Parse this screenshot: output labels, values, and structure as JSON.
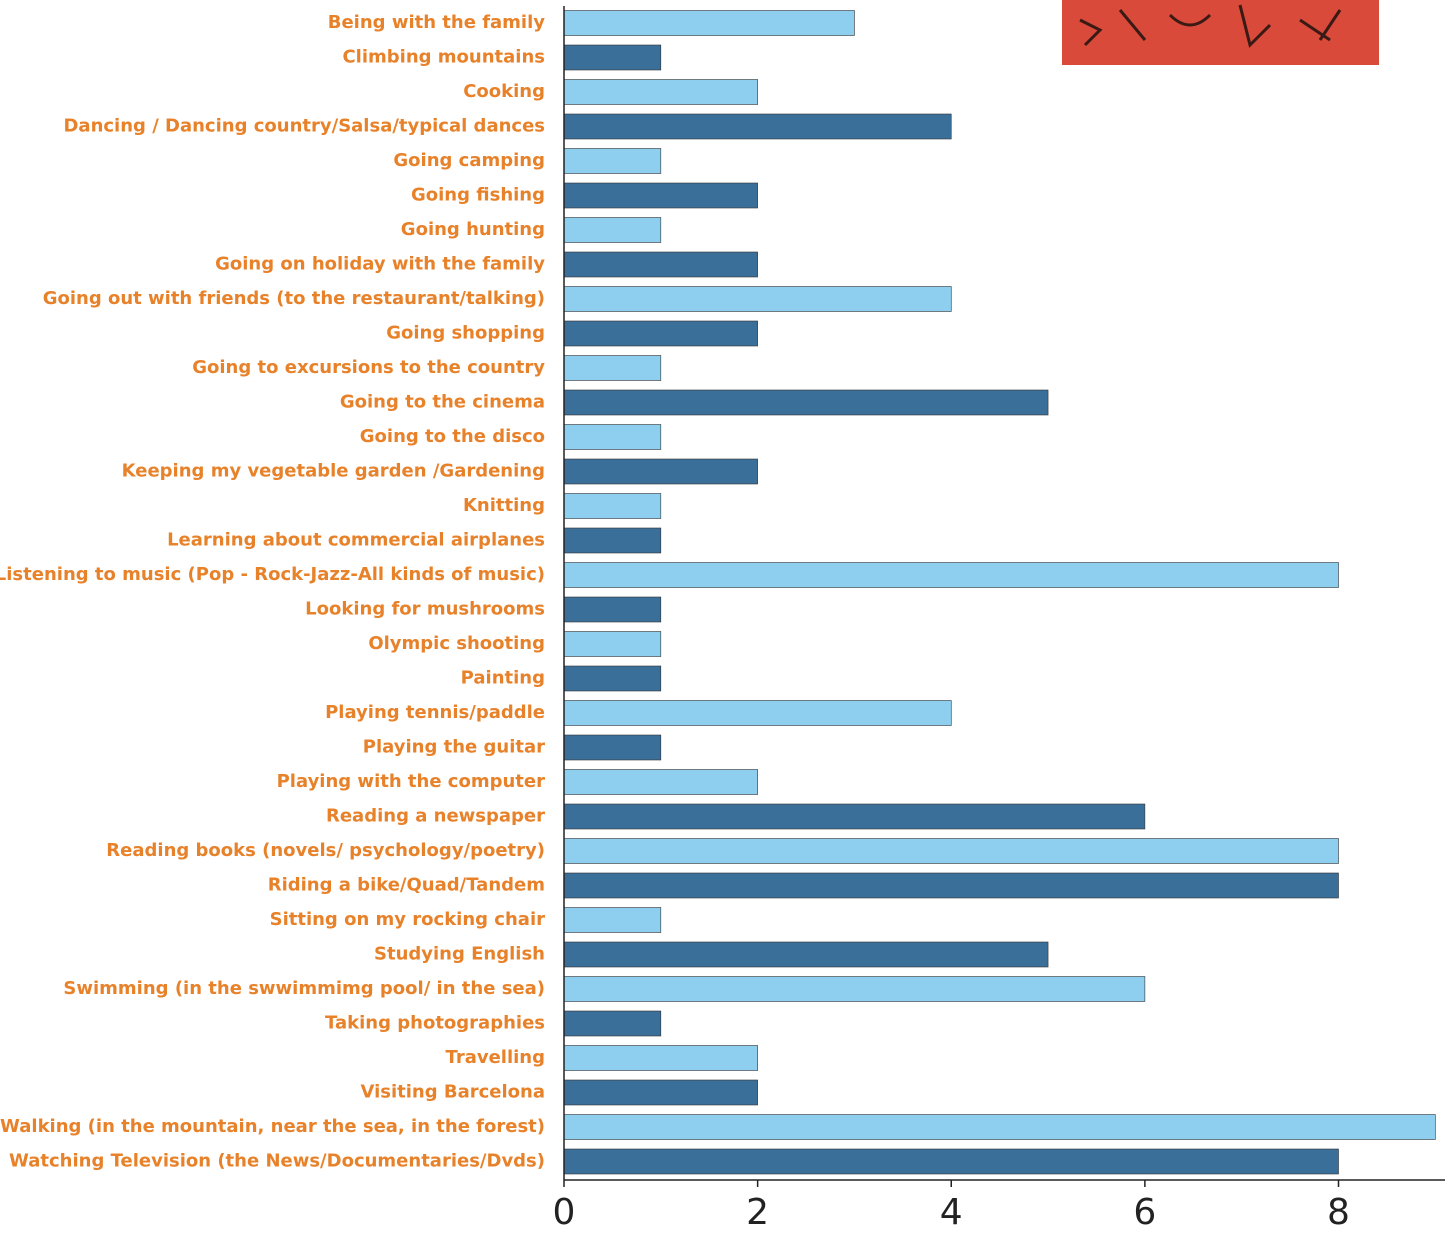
{
  "chart_data": {
    "type": "barh",
    "categories": [
      "Being with the family",
      "Climbing mountains",
      "Cooking",
      "Dancing / Dancing country/Salsa/typical dances",
      "Going camping",
      "Going fishing",
      "Going hunting",
      "Going on holiday with the family",
      "Going out with friends (to the restaurant/talking)",
      "Going shopping",
      "Going to excursions to the country",
      "Going to the cinema",
      "Going to the disco",
      "Keeping my vegetable garden /Gardening",
      "Knitting",
      "Learning about commercial airplanes",
      "Listening to music (Pop - Rock-Jazz-All kinds of music)",
      "Looking for mushrooms",
      "Olympic shooting",
      "Painting",
      "Playing tennis/paddle",
      "Playing the guitar",
      "Playing with the computer",
      "Reading a newspaper",
      "Reading books (novels/ psychology/poetry)",
      "Riding a bike/Quad/Tandem",
      "Sitting on my rocking chair",
      "Studying English",
      "Swimming (in the swwimmimg pool/ in the sea)",
      "Taking photographies",
      "Travelling",
      "Visiting Barcelona",
      "Walking (in the mountain, near the sea, in the forest)",
      "Watching Television (the News/Documentaries/Dvds)"
    ],
    "values": [
      3,
      1,
      2,
      4,
      1,
      2,
      1,
      2,
      4,
      2,
      1,
      5,
      1,
      2,
      1,
      1,
      8,
      1,
      1,
      1,
      4,
      1,
      2,
      6,
      8,
      8,
      1,
      5,
      6,
      1,
      2,
      2,
      9,
      8
    ],
    "colors": [
      "#8ecff0",
      "#3a6f9a"
    ],
    "xlim": [
      0,
      9.1
    ],
    "xticks": [
      0,
      2,
      4,
      6,
      8
    ]
  }
}
